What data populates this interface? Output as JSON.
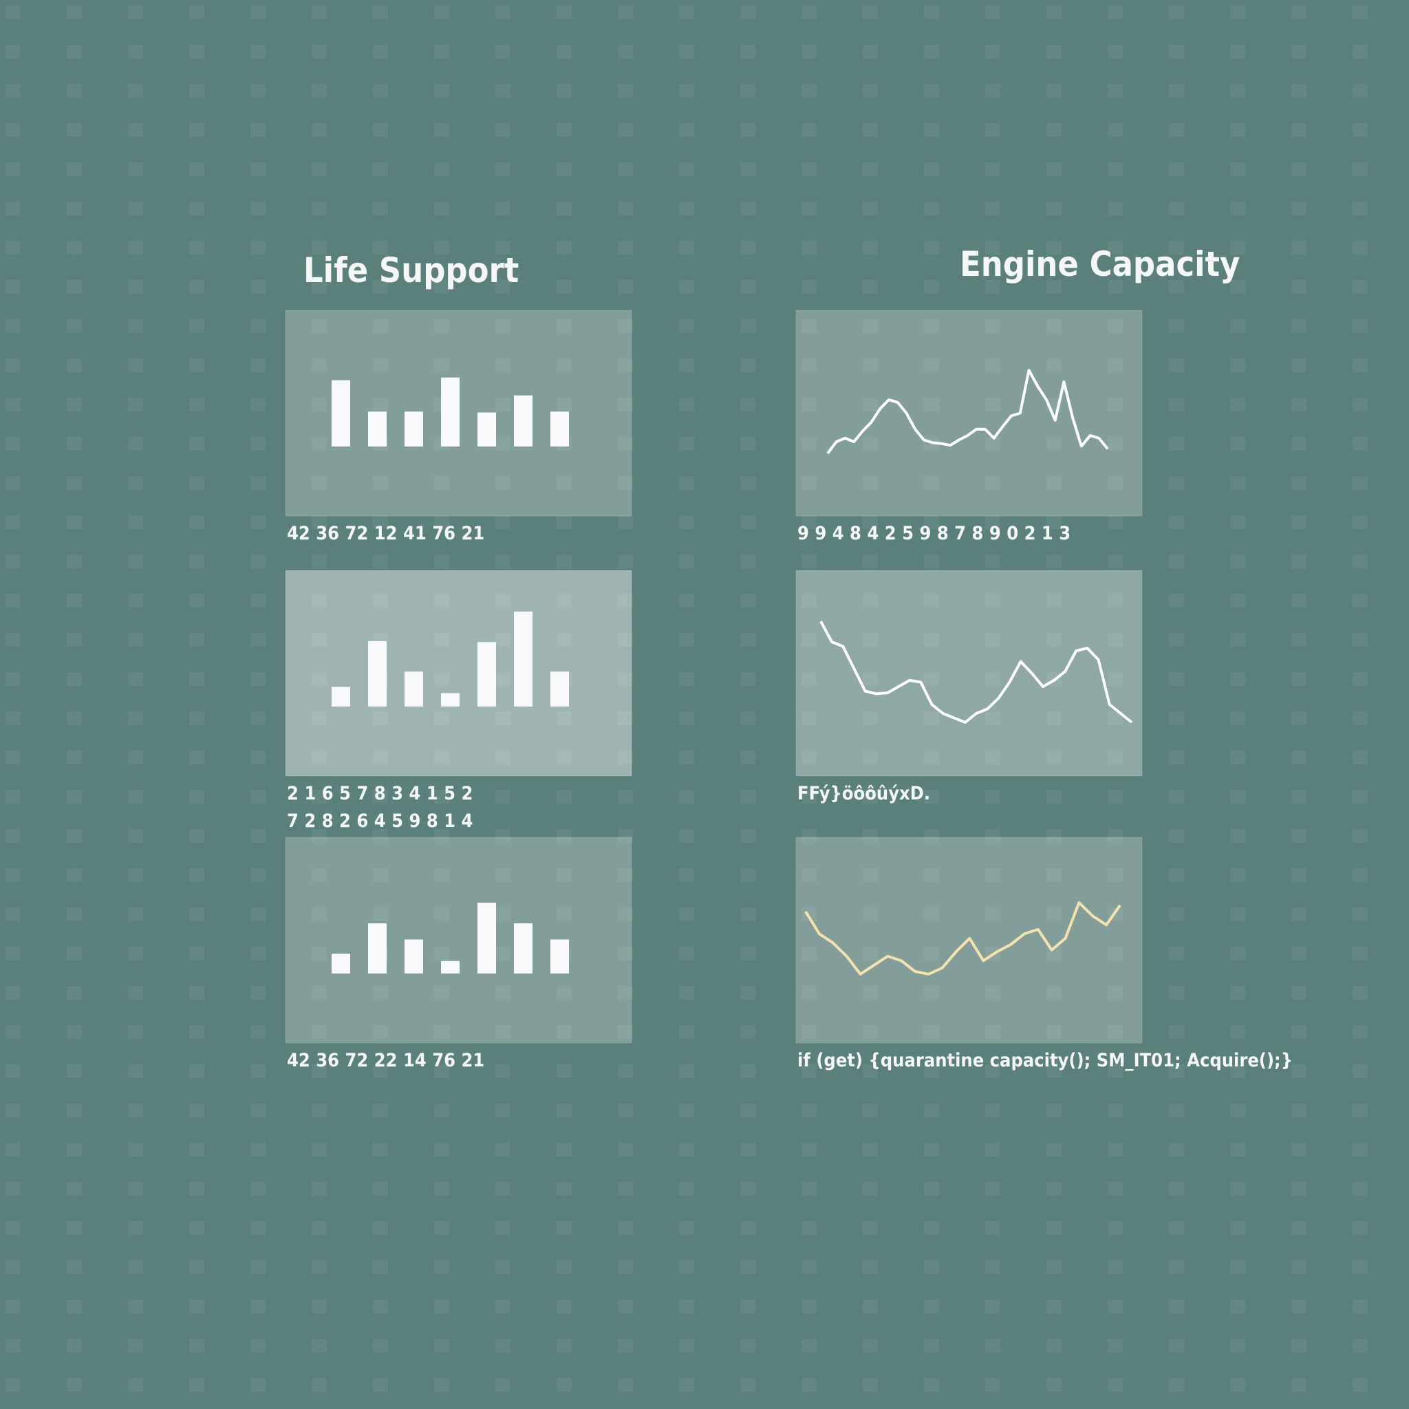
{
  "titles": [
    "Life Support",
    "Engine Capacity"
  ],
  "chart_data": [
    {
      "type": "bar",
      "values": [
        74,
        39,
        39,
        77,
        38,
        57,
        39
      ],
      "ylim": [
        0,
        152
      ],
      "color": "#f7f9fb",
      "caption": [
        "42 36 72 12 41 76 21"
      ]
    },
    {
      "type": "bar",
      "values": [
        22,
        73,
        39,
        15,
        72,
        106,
        39
      ],
      "ylim": [
        0,
        152
      ],
      "color": "#f7f9fb",
      "caption": [
        "2 1 6 5 7 8 3 4 1 5 2",
        "7 2 8 2 6 4 5 9 8 1 4"
      ]
    },
    {
      "type": "bar",
      "values": [
        22,
        56,
        38,
        14,
        79,
        56,
        38
      ],
      "ylim": [
        0,
        152
      ],
      "color": "#f7f9fb",
      "caption": [
        "42 36 72 22 14 76 21"
      ]
    },
    {
      "type": "line",
      "values": [
        70,
        83,
        87,
        83,
        95,
        105,
        120,
        130,
        127,
        115,
        97,
        85,
        82,
        81,
        79,
        85,
        90,
        97,
        97,
        87,
        100,
        112,
        115,
        163,
        145,
        130,
        107,
        150,
        110,
        78,
        90,
        87,
        75
      ],
      "ylim": [
        0,
        230
      ],
      "color": "#ffffff",
      "caption": [
        "9 9 4 8  4 2 5 9 8 7 8 9 0 2 1 3"
      ]
    },
    {
      "type": "line",
      "values": [
        173,
        150,
        145,
        120,
        95,
        92,
        93,
        100,
        107,
        105,
        80,
        70,
        65,
        60,
        70,
        75,
        87,
        105,
        128,
        115,
        100,
        107,
        117,
        140,
        143,
        130,
        80,
        70,
        60
      ],
      "ylim": [
        0,
        230
      ],
      "color": "#ffffff",
      "caption": [
        "FFý}öôôûýxD."
      ]
    },
    {
      "type": "line",
      "values": [
        147,
        122,
        112,
        97,
        77,
        87,
        97,
        92,
        80,
        77,
        84,
        102,
        117,
        92,
        102,
        110,
        122,
        127,
        104,
        117,
        157,
        142,
        132,
        154
      ],
      "ylim": [
        0,
        230
      ],
      "color": "#f3e2a9",
      "caption": [
        "if (get) {quarantine capacity(); SM_IT01; Acquire();}"
      ]
    }
  ]
}
